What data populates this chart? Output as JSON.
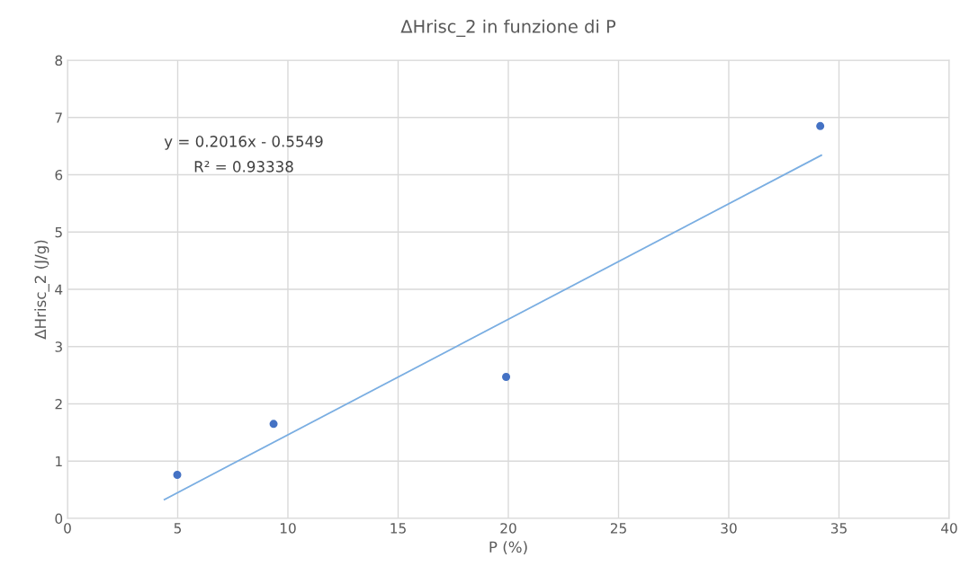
{
  "chart_data": {
    "type": "scatter",
    "title": "ΔHrisc_2 in funzione di P",
    "xlabel": "P (%)",
    "ylabel": "ΔHrisc_2 (J/g)",
    "series": [
      {
        "color": "#4472c4",
        "marker": "circle",
        "x": [
          4.98,
          9.35,
          19.9,
          34.15
        ],
        "values": [
          0.76,
          1.65,
          2.47,
          6.85
        ]
      },
      {
        "type": "line",
        "marker": "none",
        "color": "#7aaee2",
        "x": [
          4.4,
          34.2
        ],
        "values": [
          0.33,
          6.34
        ]
      }
    ],
    "annotations": [
      "y = 0.2016x - 0.5549",
      "R² = 0.93338"
    ],
    "xlim": [
      0,
      40
    ],
    "xticks": [
      0,
      5,
      10,
      15,
      20,
      25,
      30,
      35,
      40
    ],
    "ylim": [
      0,
      8
    ],
    "yticks": [
      0,
      1,
      2,
      3,
      4,
      5,
      6,
      7,
      8
    ],
    "grid": true,
    "legend": false
  }
}
